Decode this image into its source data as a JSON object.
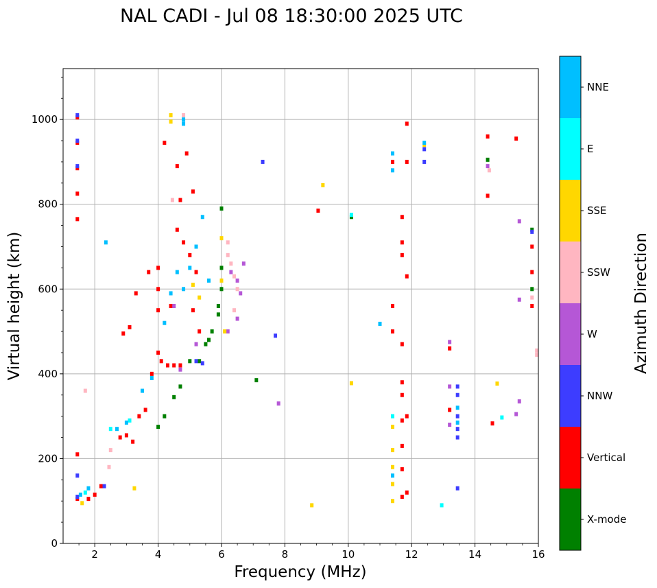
{
  "chart_data": {
    "type": "scatter",
    "title": "NAL CADI - Jul 08 18:30:00 2025 UTC",
    "xlabel": "Frequency (MHz)",
    "ylabel": "Virtual height (km)",
    "xlim": [
      1,
      16
    ],
    "ylim": [
      0,
      1120
    ],
    "xticks": [
      2,
      4,
      6,
      8,
      10,
      12,
      14,
      16
    ],
    "yticks": [
      0,
      200,
      400,
      600,
      800,
      1000
    ],
    "grid": true,
    "colorbar": {
      "label": "Azimuth Direction",
      "categories": [
        {
          "name": "X-mode",
          "color": "#008000"
        },
        {
          "name": "Vertical",
          "color": "#ff0000"
        },
        {
          "name": "NNW",
          "color": "#3d3dff"
        },
        {
          "name": "W",
          "color": "#b557d6"
        },
        {
          "name": "SSW",
          "color": "#ffb6c1"
        },
        {
          "name": "SSE",
          "color": "#ffd700"
        },
        {
          "name": "E",
          "color": "#00ffff"
        },
        {
          "name": "NNE",
          "color": "#00bfff"
        }
      ]
    },
    "series": [
      {
        "name": "Vertical",
        "points": [
          [
            1.45,
            1005
          ],
          [
            1.45,
            945
          ],
          [
            1.45,
            885
          ],
          [
            1.45,
            825
          ],
          [
            1.45,
            765
          ],
          [
            1.45,
            210
          ],
          [
            1.45,
            105
          ],
          [
            1.8,
            105
          ],
          [
            2.0,
            115
          ],
          [
            2.2,
            135
          ],
          [
            2.8,
            250
          ],
          [
            3.0,
            255
          ],
          [
            3.2,
            240
          ],
          [
            3.4,
            300
          ],
          [
            3.6,
            315
          ],
          [
            3.7,
            640
          ],
          [
            3.8,
            400
          ],
          [
            4.0,
            650
          ],
          [
            4.0,
            600
          ],
          [
            4.0,
            550
          ],
          [
            4.0,
            450
          ],
          [
            4.1,
            430
          ],
          [
            4.2,
            945
          ],
          [
            4.3,
            420
          ],
          [
            4.4,
            560
          ],
          [
            4.5,
            420
          ],
          [
            4.6,
            890
          ],
          [
            4.6,
            740
          ],
          [
            4.7,
            810
          ],
          [
            4.7,
            420
          ],
          [
            4.8,
            710
          ],
          [
            4.9,
            920
          ],
          [
            5.0,
            680
          ],
          [
            5.1,
            830
          ],
          [
            5.1,
            550
          ],
          [
            5.2,
            640
          ],
          [
            5.3,
            500
          ],
          [
            3.3,
            590
          ],
          [
            3.1,
            510
          ],
          [
            2.9,
            495
          ],
          [
            9.05,
            785
          ],
          [
            11.4,
            900
          ],
          [
            11.4,
            560
          ],
          [
            11.4,
            500
          ],
          [
            11.7,
            770
          ],
          [
            11.7,
            710
          ],
          [
            11.7,
            680
          ],
          [
            11.7,
            470
          ],
          [
            11.7,
            380
          ],
          [
            11.7,
            350
          ],
          [
            11.7,
            290
          ],
          [
            11.7,
            230
          ],
          [
            11.7,
            175
          ],
          [
            11.7,
            110
          ],
          [
            11.85,
            990
          ],
          [
            11.85,
            900
          ],
          [
            11.85,
            630
          ],
          [
            11.85,
            300
          ],
          [
            11.85,
            120
          ],
          [
            13.2,
            460
          ],
          [
            13.2,
            315
          ],
          [
            14.4,
            960
          ],
          [
            14.4,
            820
          ],
          [
            14.55,
            283
          ],
          [
            15.3,
            955
          ],
          [
            15.8,
            700
          ],
          [
            15.8,
            640
          ],
          [
            15.8,
            560
          ]
        ]
      },
      {
        "name": "X-mode",
        "points": [
          [
            4.0,
            275
          ],
          [
            4.2,
            300
          ],
          [
            4.5,
            345
          ],
          [
            4.7,
            370
          ],
          [
            5.0,
            430
          ],
          [
            5.3,
            430
          ],
          [
            5.5,
            470
          ],
          [
            5.7,
            500
          ],
          [
            5.9,
            560
          ],
          [
            6.0,
            600
          ],
          [
            6.0,
            650
          ],
          [
            6.0,
            790
          ],
          [
            5.9,
            540
          ],
          [
            5.6,
            480
          ],
          [
            7.1,
            385
          ],
          [
            10.1,
            770
          ],
          [
            14.4,
            905
          ],
          [
            15.8,
            740
          ],
          [
            15.8,
            600
          ]
        ]
      },
      {
        "name": "NNW",
        "points": [
          [
            1.45,
            1010
          ],
          [
            1.45,
            950
          ],
          [
            1.45,
            890
          ],
          [
            1.45,
            160
          ],
          [
            1.45,
            110
          ],
          [
            2.3,
            135
          ],
          [
            5.2,
            430
          ],
          [
            5.4,
            425
          ],
          [
            7.3,
            900
          ],
          [
            7.7,
            490
          ],
          [
            12.4,
            930
          ],
          [
            12.4,
            900
          ],
          [
            13.45,
            370
          ],
          [
            13.45,
            350
          ],
          [
            13.45,
            300
          ],
          [
            13.45,
            270
          ],
          [
            13.45,
            250
          ],
          [
            13.45,
            130
          ],
          [
            15.8,
            735
          ]
        ]
      },
      {
        "name": "W",
        "points": [
          [
            4.5,
            560
          ],
          [
            4.7,
            410
          ],
          [
            5.2,
            470
          ],
          [
            6.2,
            500
          ],
          [
            6.3,
            640
          ],
          [
            6.5,
            620
          ],
          [
            6.6,
            590
          ],
          [
            6.7,
            660
          ],
          [
            6.5,
            530
          ],
          [
            7.8,
            330
          ],
          [
            13.2,
            475
          ],
          [
            13.2,
            370
          ],
          [
            13.2,
            280
          ],
          [
            14.4,
            890
          ],
          [
            15.4,
            760
          ],
          [
            15.4,
            575
          ],
          [
            15.4,
            335
          ],
          [
            15.3,
            305
          ]
        ]
      },
      {
        "name": "SSW",
        "points": [
          [
            1.7,
            360
          ],
          [
            2.45,
            180
          ],
          [
            2.5,
            220
          ],
          [
            4.45,
            810
          ],
          [
            4.8,
            1010
          ],
          [
            6.2,
            710
          ],
          [
            6.2,
            680
          ],
          [
            6.3,
            660
          ],
          [
            6.4,
            630
          ],
          [
            6.5,
            600
          ],
          [
            6.4,
            550
          ],
          [
            15.95,
            455
          ],
          [
            15.95,
            445
          ],
          [
            15.8,
            580
          ],
          [
            14.45,
            880
          ]
        ]
      },
      {
        "name": "SSE",
        "points": [
          [
            1.6,
            95
          ],
          [
            3.25,
            130
          ],
          [
            4.4,
            1010
          ],
          [
            4.4,
            995
          ],
          [
            5.1,
            610
          ],
          [
            5.3,
            580
          ],
          [
            6.0,
            620
          ],
          [
            6.0,
            720
          ],
          [
            6.1,
            500
          ],
          [
            8.85,
            90
          ],
          [
            9.2,
            845
          ],
          [
            10.1,
            378
          ],
          [
            11.4,
            220
          ],
          [
            11.4,
            180
          ],
          [
            11.4,
            140
          ],
          [
            11.4,
            100
          ],
          [
            11.4,
            275
          ],
          [
            12.4,
            940
          ],
          [
            14.7,
            377
          ]
        ]
      },
      {
        "name": "E",
        "points": [
          [
            1.7,
            120
          ],
          [
            2.5,
            270
          ],
          [
            3.1,
            290
          ],
          [
            10.1,
            775
          ],
          [
            12.95,
            90
          ],
          [
            14.85,
            297
          ],
          [
            11.4,
            300
          ]
        ]
      },
      {
        "name": "NNE",
        "points": [
          [
            1.55,
            115
          ],
          [
            1.8,
            130
          ],
          [
            2.35,
            710
          ],
          [
            2.7,
            270
          ],
          [
            3.0,
            285
          ],
          [
            3.5,
            360
          ],
          [
            3.8,
            390
          ],
          [
            4.2,
            520
          ],
          [
            4.4,
            590
          ],
          [
            4.6,
            640
          ],
          [
            4.8,
            600
          ],
          [
            5.0,
            650
          ],
          [
            5.2,
            700
          ],
          [
            5.4,
            770
          ],
          [
            5.6,
            620
          ],
          [
            4.8,
            990
          ],
          [
            4.8,
            1000
          ],
          [
            11.0,
            518
          ],
          [
            11.4,
            920
          ],
          [
            11.4,
            880
          ],
          [
            11.4,
            160
          ],
          [
            12.4,
            945
          ],
          [
            13.45,
            320
          ],
          [
            13.45,
            285
          ]
        ]
      }
    ]
  }
}
